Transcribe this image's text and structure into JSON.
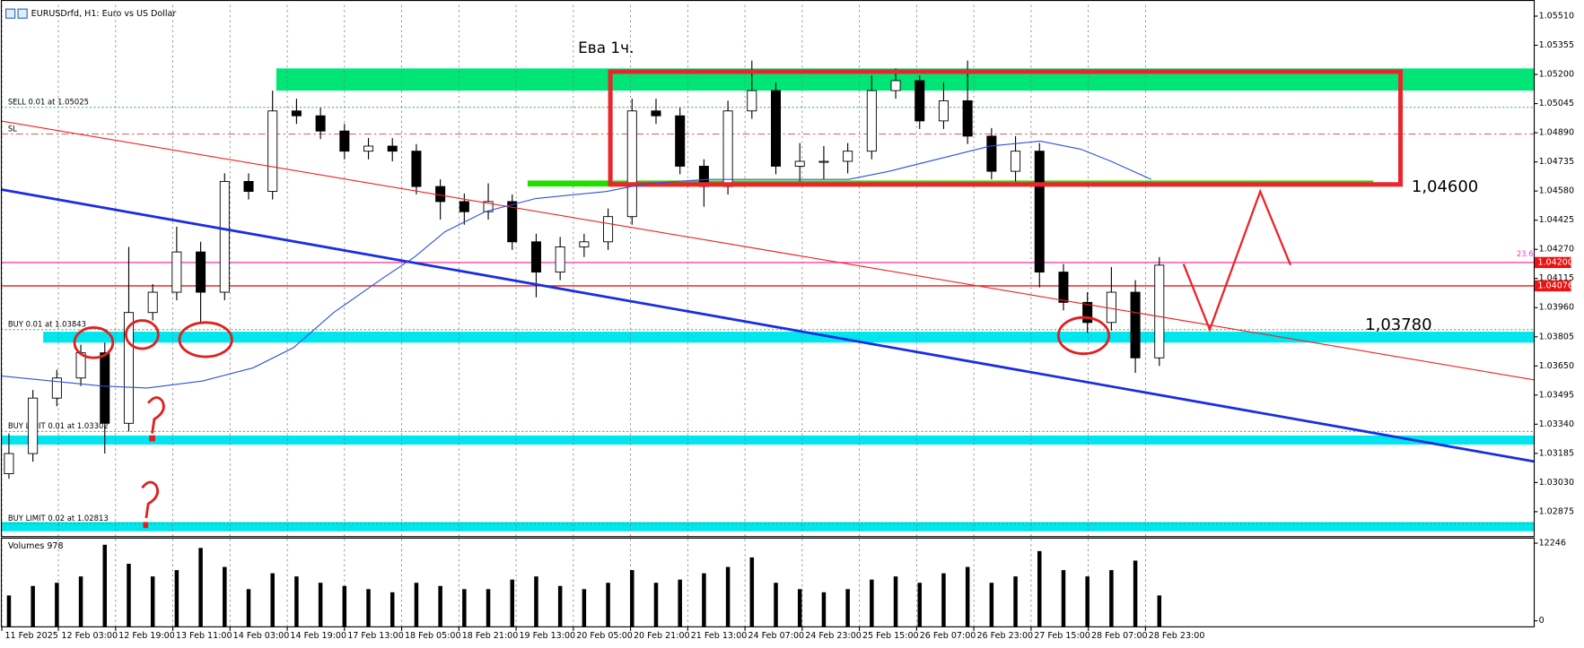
{
  "header": {
    "title": "EURUSDrfd, H1: Euro vs US Dollar"
  },
  "chart_data": {
    "type": "candlestick",
    "title": "Ева 1ч.",
    "open": [
      1.03077,
      1.03184,
      1.03479,
      1.03586,
      1.0372,
      1.03345,
      1.03934,
      1.04042,
      1.04256,
      1.04042,
      1.04631,
      1.04578,
      1.05006,
      1.0498,
      1.04899,
      1.04792,
      1.04819,
      1.04792,
      1.04604,
      1.04524,
      1.0447,
      1.04524,
      1.0431,
      1.04149,
      1.04283,
      1.0431,
      1.04444,
      1.05006,
      1.0498,
      1.04712,
      1.04604,
      1.05006,
      1.05114,
      1.04712,
      1.04738,
      1.04738,
      1.04792,
      1.05114,
      1.05167,
      1.04953,
      1.0506,
      1.04872,
      1.04685,
      1.04792,
      1.04149,
      1.03988,
      1.03881,
      1.04042,
      1.03693
    ],
    "high": [
      1.03291,
      1.03522,
      1.03629,
      1.03763,
      1.03774,
      1.04283,
      1.04085,
      1.0439,
      1.0431,
      1.04674,
      1.04674,
      1.05114,
      1.05071,
      1.05023,
      1.04937,
      1.04862,
      1.04862,
      1.0483,
      1.04642,
      1.04567,
      1.04621,
      1.04562,
      1.04353,
      1.04336,
      1.04353,
      1.04487,
      1.05071,
      1.05071,
      1.05023,
      1.04749,
      1.0506,
      1.05274,
      1.05157,
      1.04835,
      1.04819,
      1.04835,
      1.05194,
      1.05232,
      1.05194,
      1.05157,
      1.05274,
      1.04915,
      1.04872,
      1.04835,
      1.04192,
      1.04042,
      1.04176,
      1.04106,
      1.04229
    ],
    "low": [
      1.0305,
      1.03141,
      1.03436,
      1.03543,
      1.03184,
      1.03302,
      1.03892,
      1.03999,
      1.03881,
      1.03999,
      1.04535,
      1.04535,
      1.04937,
      1.04856,
      1.04749,
      1.04749,
      1.04738,
      1.04562,
      1.04428,
      1.04401,
      1.04428,
      1.04267,
      1.04015,
      1.04106,
      1.04229,
      1.04267,
      1.04401,
      1.04937,
      1.04669,
      1.04497,
      1.04562,
      1.04964,
      1.04669,
      1.04631,
      1.04642,
      1.04674,
      1.04749,
      1.05071,
      1.0491,
      1.0491,
      1.0483,
      1.04642,
      1.04631,
      1.04068,
      1.03945,
      1.03827,
      1.03838,
      1.03613,
      1.0365
    ],
    "close": [
      1.03184,
      1.03479,
      1.03586,
      1.0372,
      1.03345,
      1.03934,
      1.04042,
      1.04256,
      1.04042,
      1.04631,
      1.04578,
      1.05006,
      1.0498,
      1.04899,
      1.04792,
      1.04819,
      1.04792,
      1.04604,
      1.04524,
      1.0447,
      1.04524,
      1.0431,
      1.04149,
      1.04283,
      1.0431,
      1.04444,
      1.05006,
      1.0498,
      1.04712,
      1.04604,
      1.05006,
      1.05114,
      1.04712,
      1.04738,
      1.04738,
      1.04792,
      1.05114,
      1.05167,
      1.04953,
      1.0506,
      1.04872,
      1.04685,
      1.04792,
      1.04149,
      1.03988,
      1.03881,
      1.04042,
      1.03693,
      1.04186
    ],
    "up_color": "#ffffff",
    "down_color": "#000000",
    "ylim": [
      1.02745,
      1.05569
    ],
    "yticks": [
      {
        "value": 1.0551,
        "label": "1.05510"
      },
      {
        "value": 1.05355,
        "label": "1.05355"
      },
      {
        "value": 1.052,
        "label": "1.05200"
      },
      {
        "value": 1.05045,
        "label": "1.05045"
      },
      {
        "value": 1.0489,
        "label": "1.04890"
      },
      {
        "value": 1.04735,
        "label": "1.04735"
      },
      {
        "value": 1.0458,
        "label": "1.04580"
      },
      {
        "value": 1.04425,
        "label": "1.04425"
      },
      {
        "value": 1.0427,
        "label": "1.04270"
      },
      {
        "value": 1.04115,
        "label": "1.04115"
      },
      {
        "value": 1.0396,
        "label": "1.03960"
      },
      {
        "value": 1.03805,
        "label": "1.03805"
      },
      {
        "value": 1.0365,
        "label": "1.03650"
      },
      {
        "value": 1.03495,
        "label": "1.03495"
      },
      {
        "value": 1.0334,
        "label": "1.03340"
      },
      {
        "value": 1.03185,
        "label": "1.03185"
      },
      {
        "value": 1.0303,
        "label": "1.03030"
      },
      {
        "value": 1.02875,
        "label": "1.02875"
      }
    ],
    "x_tick_labels": [
      "11 Feb 2025",
      "12 Feb 03:00",
      "12 Feb 19:00",
      "13 Feb 11:00",
      "14 Feb 03:00",
      "14 Feb 19:00",
      "17 Feb 13:00",
      "18 Feb 05:00",
      "18 Feb 21:00",
      "19 Feb 13:00",
      "20 Feb 05:00",
      "20 Feb 21:00",
      "21 Feb 13:00",
      "24 Feb 07:00",
      "24 Feb 23:00",
      "25 Feb 15:00",
      "26 Feb 07:00",
      "26 Feb 23:00",
      "27 Feb 15:00",
      "28 Feb 07:00",
      "28 Feb 23:00"
    ],
    "grid": true,
    "zones": [
      {
        "from": 1.05114,
        "to": 1.05232,
        "color": "#00e676"
      },
      {
        "from": 1.04604,
        "to": 1.04636,
        "color": "#22dd00"
      },
      {
        "from": 1.03774,
        "to": 1.03832,
        "color": "#00e5ee"
      },
      {
        "from": 1.03232,
        "to": 1.0328,
        "color": "#00e5ee"
      },
      {
        "from": 1.02771,
        "to": 1.0282,
        "color": "#00e5ee"
      }
    ],
    "box": {
      "from": 1.04615,
      "to": 1.05215,
      "color": "#e8262b"
    },
    "orders": [
      {
        "label": "SELL 0.01 at 1.05025",
        "price": 1.05025,
        "color": "#2e9e3e"
      },
      {
        "label": "SL",
        "price": 1.04883,
        "color": "#e04040"
      },
      {
        "label": "BUY 0.01 at 1.03843",
        "price": 1.03843,
        "color": "#2e9e3e"
      },
      {
        "label": "BUY LIMIT 0.01 at 1.03302",
        "price": 1.03302,
        "color": "#2e9e3e"
      },
      {
        "label": "BUY LIMIT 0.02 at 1.02813",
        "price": 1.02813,
        "color": "#2e9e3e"
      }
    ],
    "price_markers": [
      {
        "value": 1.042,
        "label": "1.04200",
        "color": "#ff3399"
      },
      {
        "value": 1.04076,
        "label": "1.04076",
        "color": "#ee1111"
      }
    ],
    "fibo_level": 23.6,
    "levels_text": [
      {
        "value": 1.046,
        "label": "1,04600"
      },
      {
        "value": 1.0378,
        "label": "1,03780"
      }
    ],
    "volume": {
      "label": "Volumes 978",
      "values": [
        4000,
        5500,
        6000,
        7000,
        12000,
        9000,
        7000,
        8000,
        11500,
        8500,
        5000,
        7500,
        7000,
        6000,
        5500,
        5000,
        4500,
        6000,
        5500,
        5000,
        5000,
        6500,
        7000,
        5500,
        5000,
        6000,
        8000,
        6000,
        6500,
        7500,
        8500,
        10000,
        6000,
        5000,
        4500,
        5000,
        6500,
        7000,
        6000,
        7500,
        8500,
        6000,
        7000,
        11000,
        8000,
        7000,
        8000,
        9500,
        4000
      ],
      "ylim": [
        0,
        12246
      ],
      "yticks": [
        12246,
        0
      ],
      "color": "#000000"
    }
  }
}
